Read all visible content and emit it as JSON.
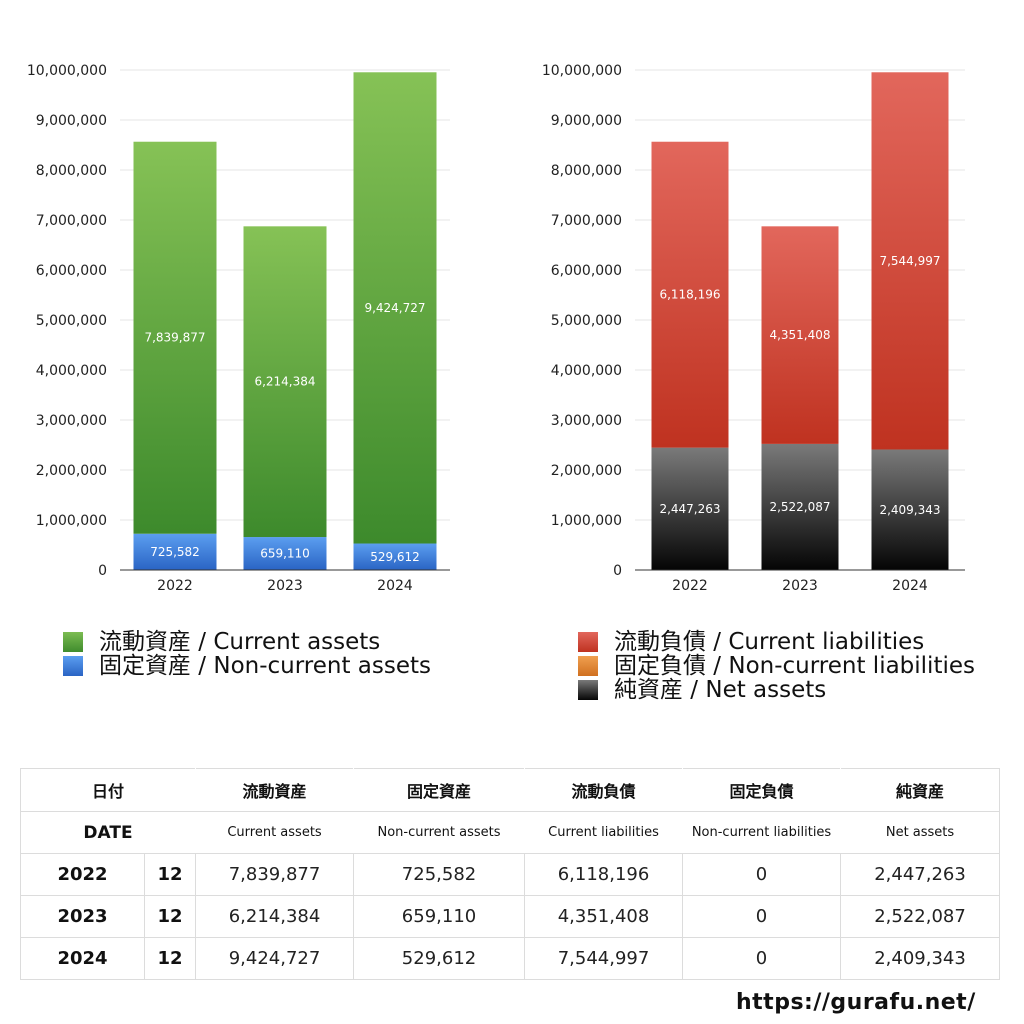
{
  "chart_data": [
    {
      "type": "bar",
      "stacked": true,
      "categories": [
        "2022",
        "2023",
        "2024"
      ],
      "ylim": [
        0,
        10000000
      ],
      "yticks": [
        "0",
        "1,000,000",
        "2,000,000",
        "3,000,000",
        "4,000,000",
        "5,000,000",
        "6,000,000",
        "7,000,000",
        "8,000,000",
        "9,000,000",
        "10,000,000"
      ],
      "grid": true,
      "series": [
        {
          "name": "固定資産 / Non-current assets",
          "values": [
            725582,
            659110,
            529612
          ],
          "labels": [
            "725,582",
            "659,110",
            "529,612"
          ],
          "color": "#3d7fd6"
        },
        {
          "name": "流動資産 / Current assets",
          "values": [
            7839877,
            6214384,
            9424727
          ],
          "labels": [
            "7,839,877",
            "6,214,384",
            "9,424,727"
          ],
          "color": "#5aa840"
        }
      ]
    },
    {
      "type": "bar",
      "stacked": true,
      "categories": [
        "2022",
        "2023",
        "2024"
      ],
      "ylim": [
        0,
        10000000
      ],
      "yticks": [
        "0",
        "1,000,000",
        "2,000,000",
        "3,000,000",
        "4,000,000",
        "5,000,000",
        "6,000,000",
        "7,000,000",
        "8,000,000",
        "9,000,000",
        "10,000,000"
      ],
      "grid": true,
      "series": [
        {
          "name": "純資産 / Net assets",
          "values": [
            2447263,
            2522087,
            2409343
          ],
          "labels": [
            "2,447,263",
            "2,522,087",
            "2,409,343"
          ],
          "color": "#2a2a2a"
        },
        {
          "name": "固定負債 / Non-current liabilities",
          "values": [
            0,
            0,
            0
          ],
          "labels": [
            "",
            "",
            ""
          ],
          "color": "#e08a3a"
        },
        {
          "name": "流動負債 / Current liabilities",
          "values": [
            6118196,
            4351408,
            7544997
          ],
          "labels": [
            "6,118,196",
            "4,351,408",
            "7,544,997"
          ],
          "color": "#cf4433"
        }
      ]
    }
  ],
  "legend_left": [
    {
      "label": "流動資産 / Current assets",
      "color": "#5aa840"
    },
    {
      "label": "固定資産 / Non-current assets",
      "color": "#3d7fd6"
    }
  ],
  "legend_right": [
    {
      "label": "流動負債 / Current liabilities",
      "color": "#cf4433"
    },
    {
      "label": "固定負債 / Non-current liabilities",
      "color": "#e08a3a"
    },
    {
      "label": "純資産 / Net assets",
      "color": "#2a2a2a"
    }
  ],
  "table": {
    "date_label_jp": "日付",
    "date_label_en": "DATE",
    "headers_jp": [
      "流動資産",
      "固定資産",
      "流動負債",
      "固定負債",
      "純資産"
    ],
    "headers_en": [
      "Current assets",
      "Non-current assets",
      "Current liabilities",
      "Non-current liabilities",
      "Net assets"
    ],
    "rows": [
      {
        "year": "2022",
        "month": "12",
        "values": [
          "7,839,877",
          "725,582",
          "6,118,196",
          "0",
          "2,447,263"
        ]
      },
      {
        "year": "2023",
        "month": "12",
        "values": [
          "6,214,384",
          "659,110",
          "4,351,408",
          "0",
          "2,522,087"
        ]
      },
      {
        "year": "2024",
        "month": "12",
        "values": [
          "9,424,727",
          "529,612",
          "7,544,997",
          "0",
          "2,409,343"
        ]
      }
    ]
  },
  "url": "https://gurafu.net/"
}
